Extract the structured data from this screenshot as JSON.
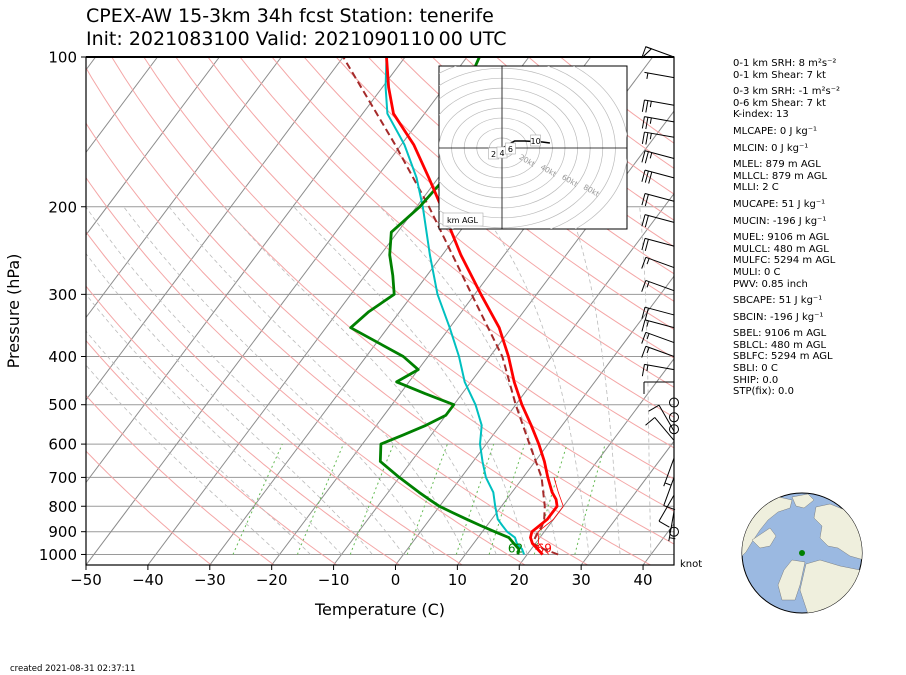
{
  "header": {
    "title_line1": "CPEX-AW 15-3km  34h fcst  Station: tenerife",
    "title_line2": "Init: 2021083100  Valid: 2021090110 00 UTC"
  },
  "chart_data": {
    "type": "skewt",
    "xlabel": "Temperature (C)",
    "ylabel": "Pressure (hPa)",
    "xlim": [
      -50,
      45
    ],
    "ylim": [
      1050,
      100
    ],
    "x_ticks": [
      -50,
      -40,
      -30,
      -20,
      -10,
      0,
      10,
      20,
      30,
      40
    ],
    "x_tick_labels": [
      "−50",
      "−40",
      "−30",
      "−20",
      "−10",
      "0",
      "10",
      "20",
      "30",
      "40"
    ],
    "p_ticks": [
      100,
      200,
      300,
      400,
      500,
      600,
      700,
      800,
      900,
      1000
    ],
    "p_tick_labels": [
      "100",
      "200",
      "300",
      "400",
      "500",
      "600",
      "700",
      "800",
      "900",
      "1000"
    ],
    "grid": true,
    "temperature": {
      "name": "Temperature",
      "color": "#ff0000",
      "points": [
        [
          1000,
          22.5
        ],
        [
          975,
          21
        ],
        [
          950,
          19.5
        ],
        [
          925,
          18.5
        ],
        [
          900,
          18
        ],
        [
          875,
          18.5
        ],
        [
          850,
          19
        ],
        [
          825,
          19
        ],
        [
          800,
          19
        ],
        [
          775,
          18
        ],
        [
          750,
          16.5
        ],
        [
          700,
          14
        ],
        [
          650,
          11.5
        ],
        [
          600,
          8.5
        ],
        [
          550,
          5
        ],
        [
          500,
          1
        ],
        [
          450,
          -3
        ],
        [
          400,
          -7
        ],
        [
          350,
          -12
        ],
        [
          300,
          -19
        ],
        [
          250,
          -27
        ],
        [
          200,
          -36
        ],
        [
          175,
          -41.5
        ],
        [
          150,
          -48
        ],
        [
          130,
          -55
        ],
        [
          115,
          -59
        ],
        [
          100,
          -63
        ]
      ]
    },
    "virtual_temperature": {
      "name": "Virtual temperature",
      "color": "#ff0000",
      "points": [
        [
          1000,
          23.5
        ],
        [
          950,
          20.5
        ],
        [
          900,
          19
        ],
        [
          850,
          20
        ],
        [
          800,
          20
        ],
        [
          750,
          17.5
        ],
        [
          700,
          15
        ]
      ]
    },
    "dewpoint": {
      "name": "Dewpoint",
      "color": "#008000",
      "points": [
        [
          1000,
          18.5
        ],
        [
          975,
          18
        ],
        [
          950,
          16.5
        ],
        [
          925,
          15
        ],
        [
          900,
          12
        ],
        [
          875,
          9
        ],
        [
          850,
          6
        ],
        [
          825,
          3
        ],
        [
          800,
          0
        ],
        [
          775,
          -2.5
        ],
        [
          750,
          -5
        ],
        [
          700,
          -10
        ],
        [
          650,
          -15
        ],
        [
          600,
          -17
        ],
        [
          575,
          -14.5
        ],
        [
          550,
          -12
        ],
        [
          525,
          -10
        ],
        [
          500,
          -10
        ],
        [
          475,
          -16
        ],
        [
          450,
          -22
        ],
        [
          425,
          -20
        ],
        [
          400,
          -24
        ],
        [
          350,
          -36
        ],
        [
          325,
          -35
        ],
        [
          300,
          -33
        ],
        [
          275,
          -35.5
        ],
        [
          250,
          -38.5
        ],
        [
          225,
          -41
        ],
        [
          200,
          -39.5
        ],
        [
          180,
          -39
        ],
        [
          160,
          -40
        ],
        [
          145,
          -42
        ],
        [
          130,
          -45
        ],
        [
          115,
          -46.5
        ],
        [
          100,
          -48
        ]
      ]
    },
    "wetbulb": {
      "name": "Wet-bulb temperature",
      "color": "#00c0c0",
      "points": [
        [
          1000,
          19.5
        ],
        [
          975,
          18.5
        ],
        [
          950,
          17
        ],
        [
          925,
          16
        ],
        [
          900,
          14
        ],
        [
          875,
          12.5
        ],
        [
          850,
          11
        ],
        [
          800,
          9
        ],
        [
          750,
          7
        ],
        [
          700,
          4
        ],
        [
          650,
          1.5
        ],
        [
          600,
          -1
        ],
        [
          550,
          -3
        ],
        [
          500,
          -6.5
        ],
        [
          450,
          -11
        ],
        [
          400,
          -15
        ],
        [
          350,
          -20
        ],
        [
          300,
          -26
        ],
        [
          250,
          -32
        ],
        [
          200,
          -39
        ],
        [
          175,
          -43.5
        ],
        [
          150,
          -49.5
        ],
        [
          130,
          -56
        ],
        [
          115,
          -59.5
        ],
        [
          100,
          -63
        ]
      ]
    },
    "parcel": {
      "name": "Parcel path",
      "color": "#a52a2a",
      "style": "dashed",
      "points": [
        [
          1000,
          25
        ],
        [
          975,
          22
        ],
        [
          950,
          19.5
        ],
        [
          900,
          19
        ],
        [
          880,
          19
        ],
        [
          850,
          18.5
        ],
        [
          800,
          17
        ],
        [
          700,
          13
        ],
        [
          600,
          7
        ],
        [
          500,
          0
        ],
        [
          400,
          -8
        ],
        [
          300,
          -20.5
        ],
        [
          200,
          -38
        ],
        [
          150,
          -51
        ],
        [
          100,
          -70
        ]
      ]
    },
    "surface_labels": [
      {
        "text": "62",
        "color": "#008000"
      },
      {
        "text": "69",
        "color": "#ff0000"
      }
    ],
    "wind_barbs": [
      {
        "p": 100,
        "spd": 50,
        "dir": 290
      },
      {
        "p": 110,
        "spd": 5,
        "dir": 280
      },
      {
        "p": 125,
        "spd": 25,
        "dir": 280
      },
      {
        "p": 135,
        "spd": 25,
        "dir": 280
      },
      {
        "p": 145,
        "spd": 25,
        "dir": 280
      },
      {
        "p": 160,
        "spd": 25,
        "dir": 285
      },
      {
        "p": 175,
        "spd": 30,
        "dir": 285
      },
      {
        "p": 195,
        "spd": 20,
        "dir": 285
      },
      {
        "p": 215,
        "spd": 20,
        "dir": 285
      },
      {
        "p": 240,
        "spd": 20,
        "dir": 285
      },
      {
        "p": 265,
        "spd": 15,
        "dir": 290
      },
      {
        "p": 295,
        "spd": 15,
        "dir": 290
      },
      {
        "p": 330,
        "spd": 20,
        "dir": 285
      },
      {
        "p": 350,
        "spd": 15,
        "dir": 285
      },
      {
        "p": 375,
        "spd": 15,
        "dir": 290
      },
      {
        "p": 400,
        "spd": 15,
        "dir": 290
      },
      {
        "p": 425,
        "spd": 15,
        "dir": 280
      },
      {
        "p": 450,
        "spd": 10,
        "dir": 270
      },
      {
        "p": 495,
        "spd": 0,
        "dir": 0
      },
      {
        "p": 530,
        "spd": 0,
        "dir": 0
      },
      {
        "p": 560,
        "spd": 0,
        "dir": 0
      },
      {
        "p": 565,
        "spd": 10,
        "dir": 330
      },
      {
        "p": 590,
        "spd": 10,
        "dir": 320
      },
      {
        "p": 640,
        "spd": 5,
        "dir": 200
      },
      {
        "p": 700,
        "spd": 10,
        "dir": 200
      },
      {
        "p": 760,
        "spd": 10,
        "dir": 210
      },
      {
        "p": 820,
        "spd": 5,
        "dir": 190
      },
      {
        "p": 900,
        "spd": 0,
        "dir": 0
      }
    ],
    "barb_unit_label": "knot",
    "hodograph": {
      "range_labels": [
        "20kt",
        "40kt",
        "60kt",
        "80kt"
      ],
      "height_labels": [
        "2",
        "4",
        "6",
        "10"
      ],
      "box_label": "km AGL",
      "points": [
        [
          0,
          0
        ],
        [
          2,
          1
        ],
        [
          6,
          4
        ],
        [
          10,
          7
        ],
        [
          18,
          7
        ],
        [
          32,
          6
        ],
        [
          38,
          5
        ]
      ]
    }
  },
  "indices": [
    {
      "text": "0-1 km SRH: 8 m²s⁻²",
      "gap": false
    },
    {
      "text": "0-1 km Shear: 7 kt",
      "gap": false
    },
    {
      "text": "0-3 km SRH: -1 m²s⁻²",
      "gap": true
    },
    {
      "text": "0-6 km Shear: 7 kt",
      "gap": false
    },
    {
      "text": "K-index: 13",
      "gap": false
    },
    {
      "text": "MLCAPE: 0 J kg⁻¹",
      "gap": true
    },
    {
      "text": "MLCIN: 0 J kg⁻¹",
      "gap": true
    },
    {
      "text": "MLEL: 879 m AGL",
      "gap": true
    },
    {
      "text": "MLLCL: 879 m AGL",
      "gap": false
    },
    {
      "text": "MLLI: 2 C",
      "gap": false
    },
    {
      "text": "MUCAPE: 51 J kg⁻¹",
      "gap": true
    },
    {
      "text": "MUCIN: -196 J kg⁻¹",
      "gap": true
    },
    {
      "text": "MUEL: 9106 m AGL",
      "gap": true
    },
    {
      "text": "MULCL: 480 m AGL",
      "gap": false
    },
    {
      "text": "MULFC: 5294 m AGL",
      "gap": false
    },
    {
      "text": "MULI: 0 C",
      "gap": false
    },
    {
      "text": "PWV: 0.85 inch",
      "gap": false
    },
    {
      "text": "SBCAPE: 51 J kg⁻¹",
      "gap": true
    },
    {
      "text": "SBCIN: -196 J kg⁻¹",
      "gap": true
    },
    {
      "text": "SBEL: 9106 m AGL",
      "gap": true
    },
    {
      "text": "SBLCL: 480 m AGL",
      "gap": false
    },
    {
      "text": "SBLFC: 5294 m AGL",
      "gap": false
    },
    {
      "text": "SBLI: 0 C",
      "gap": false
    },
    {
      "text": "SHIP: 0.0",
      "gap": false
    },
    {
      "text": "STP(fix): 0.0",
      "gap": false
    }
  ],
  "footer": {
    "created": "created 2021-08-31 02:37:11"
  },
  "colors": {
    "temperature": "#ff0000",
    "dewpoint": "#008000",
    "wetbulb": "#00c0c0",
    "parcel": "#a52a2a",
    "dry_adiabat": "#f4a6a6",
    "moist_adiabat": "#bbbbbb",
    "mixing_ratio": "#66bb55",
    "isotherm": "#8c8c8c",
    "ocean": "#9bb9e1",
    "land": "#efefdd",
    "station": "#008000"
  }
}
